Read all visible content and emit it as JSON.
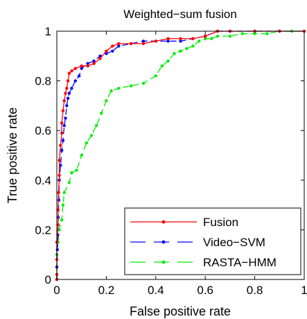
{
  "chart_data": {
    "type": "line",
    "title": "Weighted−sum fusion",
    "xlabel": "False positive rate",
    "ylabel": "True positive rate",
    "xlim": [
      0,
      1
    ],
    "ylim": [
      0,
      1
    ],
    "xticks": [
      "0",
      "0.2",
      "0.4",
      "0.6",
      "0.8",
      "1"
    ],
    "yticks": [
      "0",
      "0.2",
      "0.4",
      "0.6",
      "0.8",
      "1"
    ],
    "grid": false,
    "legend_position": "bottom-right",
    "series": [
      {
        "name": "Fusion",
        "color": "#ff0000",
        "line_style": "solid",
        "marker": "dot",
        "points": [
          [
            0,
            0
          ],
          [
            0,
            0.02
          ],
          [
            0,
            0.08
          ],
          [
            0,
            0.15
          ],
          [
            0.005,
            0.22
          ],
          [
            0.005,
            0.28
          ],
          [
            0.007,
            0.35
          ],
          [
            0.01,
            0.42
          ],
          [
            0.01,
            0.48
          ],
          [
            0.015,
            0.54
          ],
          [
            0.02,
            0.59
          ],
          [
            0.02,
            0.63
          ],
          [
            0.025,
            0.68
          ],
          [
            0.03,
            0.72
          ],
          [
            0.035,
            0.75
          ],
          [
            0.04,
            0.77
          ],
          [
            0.045,
            0.8
          ],
          [
            0.05,
            0.83
          ],
          [
            0.06,
            0.84
          ],
          [
            0.075,
            0.85
          ],
          [
            0.1,
            0.86
          ],
          [
            0.125,
            0.86
          ],
          [
            0.15,
            0.87
          ],
          [
            0.175,
            0.89
          ],
          [
            0.2,
            0.92
          ],
          [
            0.225,
            0.94
          ],
          [
            0.25,
            0.95
          ],
          [
            0.3,
            0.95
          ],
          [
            0.35,
            0.95
          ],
          [
            0.4,
            0.96
          ],
          [
            0.45,
            0.97
          ],
          [
            0.5,
            0.97
          ],
          [
            0.55,
            0.97
          ],
          [
            0.6,
            0.98
          ],
          [
            0.65,
            1
          ],
          [
            0.7,
            1
          ],
          [
            0.8,
            1
          ],
          [
            0.9,
            1
          ],
          [
            1,
            1
          ]
        ]
      },
      {
        "name": "Video−SVM",
        "color": "#0000ff",
        "line_style": "dashed",
        "marker": "dot",
        "points": [
          [
            0,
            0
          ],
          [
            0,
            0.05
          ],
          [
            0.002,
            0.12
          ],
          [
            0.004,
            0.18
          ],
          [
            0.006,
            0.25
          ],
          [
            0.008,
            0.32
          ],
          [
            0.01,
            0.4
          ],
          [
            0.015,
            0.46
          ],
          [
            0.02,
            0.52
          ],
          [
            0.025,
            0.56
          ],
          [
            0.03,
            0.62
          ],
          [
            0.035,
            0.65
          ],
          [
            0.04,
            0.7
          ],
          [
            0.045,
            0.73
          ],
          [
            0.05,
            0.75
          ],
          [
            0.06,
            0.77
          ],
          [
            0.075,
            0.8
          ],
          [
            0.09,
            0.82
          ],
          [
            0.1,
            0.85
          ],
          [
            0.125,
            0.87
          ],
          [
            0.15,
            0.88
          ],
          [
            0.175,
            0.9
          ],
          [
            0.2,
            0.91
          ],
          [
            0.225,
            0.92
          ],
          [
            0.25,
            0.94
          ],
          [
            0.3,
            0.95
          ],
          [
            0.35,
            0.96
          ],
          [
            0.4,
            0.96
          ],
          [
            0.45,
            0.96
          ],
          [
            0.5,
            0.96
          ],
          [
            0.55,
            0.97
          ],
          [
            0.6,
            0.98
          ],
          [
            0.65,
            1
          ],
          [
            0.7,
            1
          ],
          [
            0.8,
            1
          ],
          [
            0.9,
            1
          ],
          [
            1,
            1
          ]
        ]
      },
      {
        "name": "RASTA−HMM",
        "color": "#00ee00",
        "line_style": "dashed",
        "marker": "dot",
        "points": [
          [
            0,
            0
          ],
          [
            0,
            0.05
          ],
          [
            0,
            0.1
          ],
          [
            0.005,
            0.15
          ],
          [
            0.01,
            0.2
          ],
          [
            0.02,
            0.24
          ],
          [
            0.025,
            0.3
          ],
          [
            0.03,
            0.35
          ],
          [
            0.05,
            0.39
          ],
          [
            0.06,
            0.43
          ],
          [
            0.08,
            0.44
          ],
          [
            0.1,
            0.5
          ],
          [
            0.12,
            0.55
          ],
          [
            0.14,
            0.58
          ],
          [
            0.16,
            0.62
          ],
          [
            0.18,
            0.67
          ],
          [
            0.2,
            0.72
          ],
          [
            0.22,
            0.76
          ],
          [
            0.25,
            0.77
          ],
          [
            0.3,
            0.78
          ],
          [
            0.35,
            0.79
          ],
          [
            0.4,
            0.82
          ],
          [
            0.425,
            0.86
          ],
          [
            0.45,
            0.88
          ],
          [
            0.475,
            0.91
          ],
          [
            0.5,
            0.92
          ],
          [
            0.525,
            0.93
          ],
          [
            0.55,
            0.94
          ],
          [
            0.575,
            0.96
          ],
          [
            0.6,
            0.97
          ],
          [
            0.625,
            0.97
          ],
          [
            0.65,
            0.98
          ],
          [
            0.7,
            0.98
          ],
          [
            0.75,
            0.99
          ],
          [
            0.8,
            0.99
          ],
          [
            0.85,
            0.99
          ],
          [
            0.9,
            1
          ],
          [
            0.95,
            1
          ],
          [
            1,
            1
          ]
        ]
      }
    ]
  }
}
